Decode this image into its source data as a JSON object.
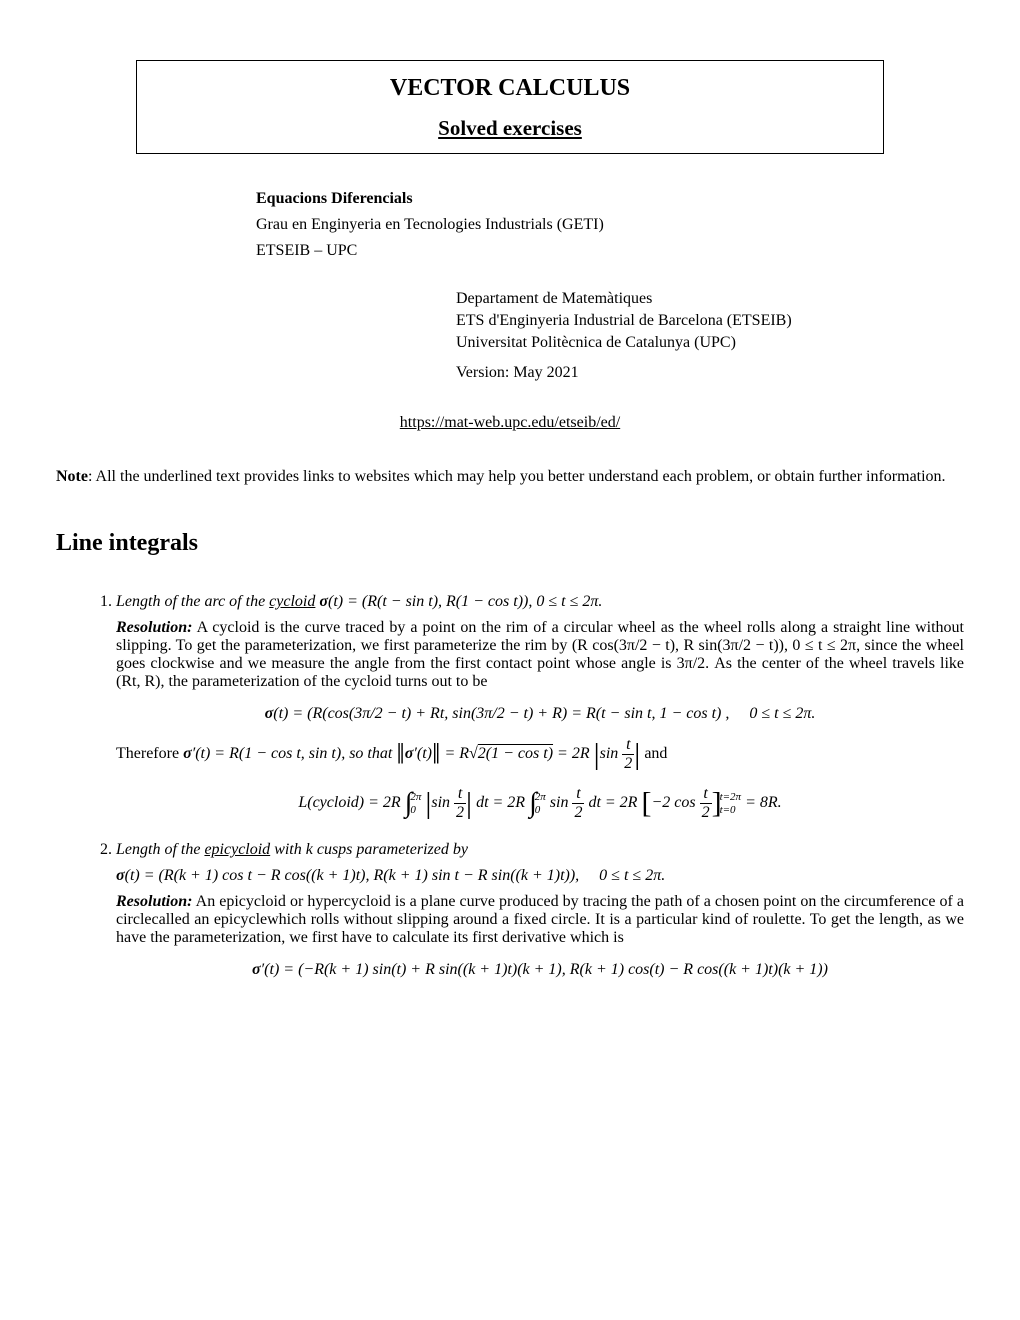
{
  "title_box": {
    "title": "VECTOR CALCULUS",
    "subtitle": "Solved exercises"
  },
  "info1": {
    "line1": "Equacions Diferencials",
    "line2": "Grau en Enginyeria en Tecnologies Industrials (GETI)",
    "line3": "ETSEIB – UPC"
  },
  "info2": {
    "line1": "Departament de Matemàtiques",
    "line2": "ETS d'Enginyeria Industrial de Barcelona (ETSEIB)",
    "line3": "Universitat Politècnica de Catalunya (UPC)",
    "version": "Version: May 2021"
  },
  "link": "https://mat-web.upc.edu/etseib/ed/",
  "note_label": "Note",
  "note_text": ": All the underlined text provides links to websites which may help you better understand each problem, or obtain further information.",
  "section_heading": "Line integrals",
  "p1": {
    "prompt_a": "Length of the arc of the ",
    "prompt_link": "cycloid",
    "prompt_b": " σ",
    "prompt_c": "(t) = (R(t − sin t), R(1 − cos t)), 0 ≤ t ≤ 2π.",
    "reso_label": "Resolution:",
    "reso_text": " A cycloid is the curve traced by a point on the rim of a circular wheel as the wheel rolls along a straight line without slipping. To get the parameterization, we first parameterize the rim by (R cos(3π/2 − t), R sin(3π/2 − t)), 0 ≤ t ≤ 2π, since the wheel goes clockwise and we measure the angle from the first contact point whose angle is 3π/2. As the center of the wheel travels like (Rt, R), the parameterization of the cycloid turns out to be",
    "eq1_a": "σ",
    "eq1_b": "(t) = (R(cos(3π/2 − t) + Rt, sin(3π/2 − t) + R) = R(t − sin t, 1 − cos t) ,  0 ≤ t ≤ 2π.",
    "mid_a": "Therefore ",
    "mid_b": "σ",
    "mid_c": "′(t) = R(1 − cos t, sin t), so that ",
    "mid_d": "σ",
    "mid_e": "′(t)",
    "mid_f": " = R",
    "mid_sqrt": "2(1 − cos t)",
    "mid_g": " = 2R ",
    "mid_sin": "sin ",
    "mid_and": " and",
    "eq2_L": "L(cycloid) = 2R",
    "eq2_int_a": "2π",
    "eq2_int_b": "0",
    "eq2_sin": "sin ",
    "eq2_dt": " dt = 2R",
    "eq2_sin2": "sin ",
    "eq2_dt2": " dt = 2R",
    "eq2_cos": "−2 cos ",
    "eq2_lim_top": "t=2π",
    "eq2_lim_bot": "t=0",
    "eq2_res": " = 8R.",
    "frac_num": "t",
    "frac_den": "2"
  },
  "p2": {
    "prompt_a": "Length of the ",
    "prompt_link": "epicycloid",
    "prompt_b": " with k cusps parameterized by",
    "eq_a": "σ",
    "eq_b": "(t) = (R(k + 1) cos t − R cos((k + 1)t), R(k + 1) sin t − R sin((k + 1)t)),  0 ≤ t ≤ 2π.",
    "reso_label": "Resolution:",
    "reso_text": " An epicycloid or hypercycloid is a plane curve produced by tracing the path of a chosen point on the circumference of a circlecalled an epicyclewhich rolls without slipping around a fixed circle. It is a particular kind of roulette. To get the length, as we have the parameterization, we first have to calculate its first derivative which is",
    "eq2_a": "σ",
    "eq2_b": "′(t) = (−R(k + 1) sin(t) + R sin((k + 1)t)(k + 1), R(k + 1) cos(t) − R cos((k + 1)t)(k + 1))"
  }
}
